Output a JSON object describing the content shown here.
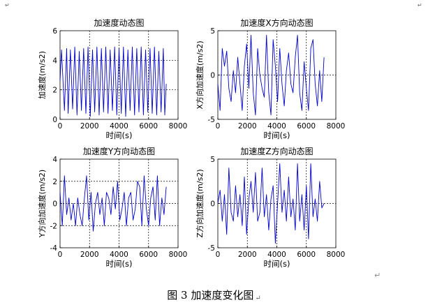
{
  "caption": {
    "text": "图 3  加速度变化图",
    "para_mark": "↵"
  },
  "corner_marks": {
    "top_left": "↵",
    "top_right": "↵",
    "trailing": "↵"
  },
  "colors": {
    "line": "#0000cc",
    "axes": "#000000",
    "grid": "#000000"
  },
  "chart_data": [
    {
      "type": "line",
      "title": "加速度动态图",
      "xlabel": "时间(s)",
      "ylabel": "加速度(m/s2)",
      "xlim": [
        0,
        8000
      ],
      "ylim": [
        0,
        6
      ],
      "xticks": [
        0,
        2000,
        4000,
        6000,
        8000
      ],
      "yticks": [
        0,
        2,
        4,
        6
      ],
      "grid": "dashed",
      "series": [
        {
          "color": "#0000cc",
          "x": [
            0,
            100,
            300,
            450,
            550,
            700,
            850,
            1000,
            1150,
            1300,
            1450,
            1600,
            1750,
            1900,
            2050,
            2200,
            2350,
            2500,
            2650,
            2800,
            2950,
            3100,
            3250,
            3400,
            3550,
            3700,
            3850,
            4000,
            4150,
            4300,
            4450,
            4600,
            4750,
            4900,
            5050,
            5200,
            5350,
            5500,
            5650,
            5800,
            5950,
            6100,
            6250,
            6400,
            6550,
            6700,
            6850,
            7000,
            7100,
            7200
          ],
          "y": [
            2.6,
            4.7,
            0.6,
            4.8,
            0.4,
            4.7,
            0.7,
            4.9,
            0.3,
            4.6,
            0.6,
            4.8,
            0.4,
            4.9,
            0.2,
            4.7,
            0.5,
            4.9,
            0.3,
            4.8,
            0.5,
            4.9,
            0.4,
            4.7,
            0.6,
            4.9,
            0.3,
            4.8,
            0.4,
            4.9,
            0.2,
            4.7,
            0.6,
            4.9,
            0.3,
            4.8,
            0.5,
            4.9,
            0.3,
            4.7,
            0.5,
            4.8,
            0.4,
            4.9,
            0.3,
            4.6,
            0.5,
            4.8,
            0.3,
            2.4
          ]
        }
      ]
    },
    {
      "type": "line",
      "title": "加速度X方向动态图",
      "xlabel": "时间(s)",
      "ylabel": "X方向加速度(m/s2)",
      "xlim": [
        0,
        8000
      ],
      "ylim": [
        -5,
        5
      ],
      "xticks": [
        0,
        2000,
        4000,
        6000,
        8000
      ],
      "yticks": [
        -5,
        0,
        5
      ],
      "grid": "dashed",
      "series": [
        {
          "color": "#0000cc",
          "x": [
            0,
            150,
            300,
            450,
            600,
            750,
            900,
            1050,
            1200,
            1350,
            1500,
            1650,
            1800,
            1950,
            2100,
            2250,
            2400,
            2550,
            2700,
            2850,
            3000,
            3150,
            3300,
            3450,
            3600,
            3750,
            3900,
            4050,
            4200,
            4350,
            4500,
            4650,
            4800,
            4950,
            5100,
            5250,
            5400,
            5550,
            5700,
            5850,
            6000,
            6150,
            6300,
            6450,
            6600,
            6750,
            6900,
            7050,
            7200
          ],
          "y": [
            -1.0,
            -4.0,
            3.0,
            1.0,
            2.7,
            -1.5,
            -3.0,
            0.5,
            -2.0,
            2.0,
            -1.0,
            -4.0,
            1.0,
            3.5,
            -1.5,
            4.5,
            -2.0,
            -4.5,
            3.0,
            0.0,
            -1.5,
            -2.5,
            4.5,
            -2.0,
            -4.5,
            4.0,
            1.0,
            -3.0,
            3.0,
            -1.0,
            -3.5,
            0.5,
            2.5,
            -1.0,
            -2.0,
            2.0,
            4.5,
            -2.0,
            -4.0,
            1.5,
            -1.5,
            -4.0,
            3.0,
            4.0,
            -1.0,
            -3.5,
            0.5,
            -3.0,
            2.0
          ]
        }
      ]
    },
    {
      "type": "line",
      "title": "加速度Y方向动态图",
      "xlabel": "时间(s)",
      "ylabel": "Y方向加速度(m/s2)",
      "xlim": [
        0,
        8000
      ],
      "ylim": [
        -4,
        4
      ],
      "xticks": [
        0,
        2000,
        4000,
        6000,
        8000
      ],
      "yticks": [
        -4,
        -2,
        0,
        2,
        4
      ],
      "grid": "dashed",
      "series": [
        {
          "color": "#0000cc",
          "x": [
            0,
            150,
            300,
            450,
            600,
            750,
            900,
            1050,
            1200,
            1350,
            1500,
            1650,
            1800,
            1950,
            2100,
            2250,
            2400,
            2550,
            2700,
            2850,
            3000,
            3150,
            3300,
            3450,
            3600,
            3750,
            3900,
            4050,
            4200,
            4350,
            4500,
            4650,
            4800,
            4950,
            5100,
            5250,
            5400,
            5550,
            5700,
            5850,
            6000,
            6150,
            6300,
            6450,
            6600,
            6750,
            6900,
            7050,
            7200
          ],
          "y": [
            1.0,
            -2.0,
            2.5,
            -1.0,
            0.5,
            -1.5,
            0.0,
            -2.0,
            0.5,
            -1.0,
            -2.0,
            0.5,
            2.5,
            -1.5,
            1.0,
            -2.5,
            0.0,
            1.0,
            -1.0,
            0.5,
            -2.0,
            1.0,
            0.5,
            -1.0,
            1.5,
            -0.5,
            2.0,
            -1.5,
            -0.5,
            1.0,
            -2.0,
            0.5,
            1.0,
            -1.5,
            -0.5,
            2.0,
            1.5,
            -2.0,
            2.5,
            -0.5,
            -2.0,
            0.5,
            1.5,
            -1.5,
            2.5,
            -2.0,
            0.5,
            -1.0,
            1.5
          ]
        }
      ]
    },
    {
      "type": "line",
      "title": "加速度Z方向动态图",
      "xlabel": "时间(s)",
      "ylabel": "Z方向加速度(m/s2)",
      "xlim": [
        0,
        8000
      ],
      "ylim": [
        -5,
        5
      ],
      "xticks": [
        0,
        2000,
        4000,
        6000,
        8000
      ],
      "yticks": [
        -5,
        0,
        5
      ],
      "grid": "dashed",
      "series": [
        {
          "color": "#0000cc",
          "x": [
            0,
            150,
            300,
            450,
            600,
            750,
            900,
            1050,
            1200,
            1350,
            1500,
            1650,
            1800,
            1950,
            2100,
            2250,
            2400,
            2550,
            2700,
            2850,
            3000,
            3150,
            3300,
            3450,
            3600,
            3750,
            3900,
            4050,
            4200,
            4350,
            4500,
            4650,
            4800,
            4950,
            5100,
            5250,
            5400,
            5550,
            5700,
            5850,
            6000,
            6150,
            6300,
            6450,
            6600,
            6750,
            6900,
            7050,
            7200
          ],
          "y": [
            0.0,
            1.5,
            -2.0,
            1.0,
            -3.5,
            4.0,
            -1.0,
            -2.0,
            2.0,
            -1.5,
            1.0,
            -2.5,
            3.0,
            -3.5,
            0.5,
            2.5,
            -1.0,
            3.5,
            -2.0,
            -1.0,
            4.0,
            -1.5,
            1.0,
            -3.0,
            0.5,
            2.0,
            -4.5,
            0.0,
            4.5,
            -1.0,
            1.5,
            -2.0,
            3.0,
            -1.5,
            0.5,
            -3.0,
            4.5,
            -2.0,
            1.0,
            -3.0,
            2.0,
            -4.0,
            4.5,
            -1.5,
            0.5,
            -2.0,
            2.5,
            -0.5,
            0.0
          ]
        }
      ]
    }
  ]
}
